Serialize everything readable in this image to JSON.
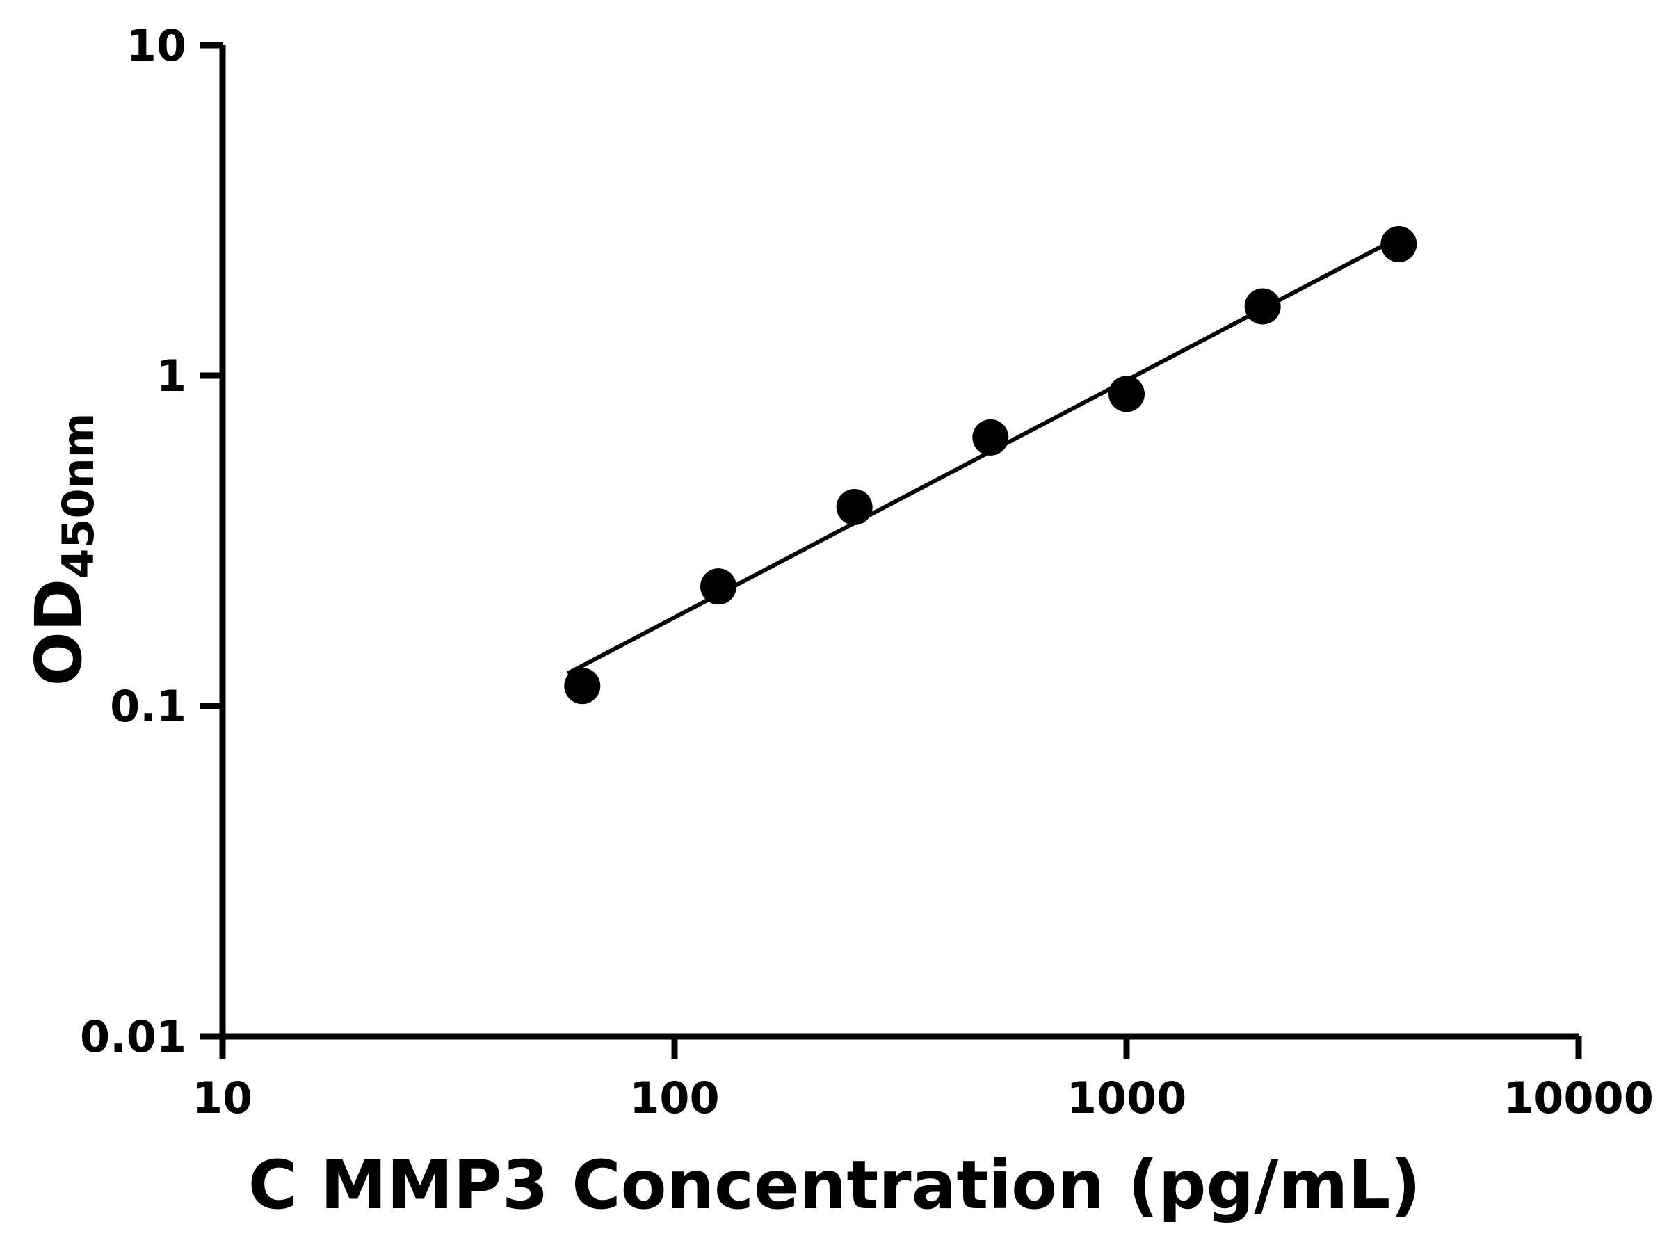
{
  "chart_data": {
    "type": "scatter",
    "series_name": "standard-curve",
    "x": [
      62.5,
      125,
      250,
      500,
      1000,
      2000,
      4000
    ],
    "y": [
      0.115,
      0.23,
      0.4,
      0.65,
      0.88,
      1.62,
      2.5
    ],
    "title": "",
    "xlabel": "C MMP3 Concentration (pg/mL)",
    "ylabel_main": "OD",
    "ylabel_sub": "450nm",
    "x_scale": "log",
    "y_scale": "log",
    "xlim": [
      10,
      10000
    ],
    "ylim": [
      0.01,
      10
    ],
    "x_ticks": [
      10,
      100,
      1000,
      10000
    ],
    "x_tick_labels": [
      "10",
      "100",
      "1000",
      "10000"
    ],
    "y_ticks": [
      0.01,
      0.1,
      1,
      10
    ],
    "y_tick_labels": [
      "0.01",
      "0.1",
      "1",
      "10"
    ],
    "trendline": {
      "fit": "power",
      "x_start": 58,
      "x_end": 4050
    },
    "marker_color": "#000000",
    "line_color": "#000000",
    "axis_color": "#000000",
    "background": "#ffffff",
    "grid": false,
    "legend": false
  }
}
